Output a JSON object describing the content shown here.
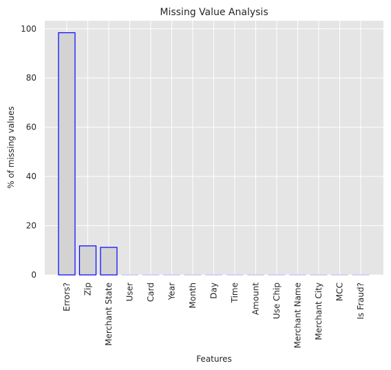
{
  "chart_data": {
    "type": "bar",
    "title": "Missing Value Analysis",
    "xlabel": "Features",
    "ylabel": "% of missing values",
    "categories": [
      "Errors?",
      "Zip",
      "Merchant State",
      "User",
      "Card",
      "Year",
      "Month",
      "Day",
      "Time",
      "Amount",
      "Use Chip",
      "Merchant Name",
      "Merchant City",
      "MCC",
      "Is Fraud?"
    ],
    "values": [
      98.4,
      11.8,
      11.2,
      0,
      0,
      0,
      0,
      0,
      0,
      0,
      0,
      0,
      0,
      0,
      0
    ],
    "ylim": [
      0,
      103.3
    ],
    "yticks": [
      0,
      20,
      40,
      60,
      80,
      100
    ],
    "grid": true,
    "colors": {
      "background": "#e5e5e5",
      "grid": "#ffffff",
      "bar_fill": "#d3d3d3",
      "bar_edge": "#0000ff",
      "text": "#262626"
    }
  }
}
